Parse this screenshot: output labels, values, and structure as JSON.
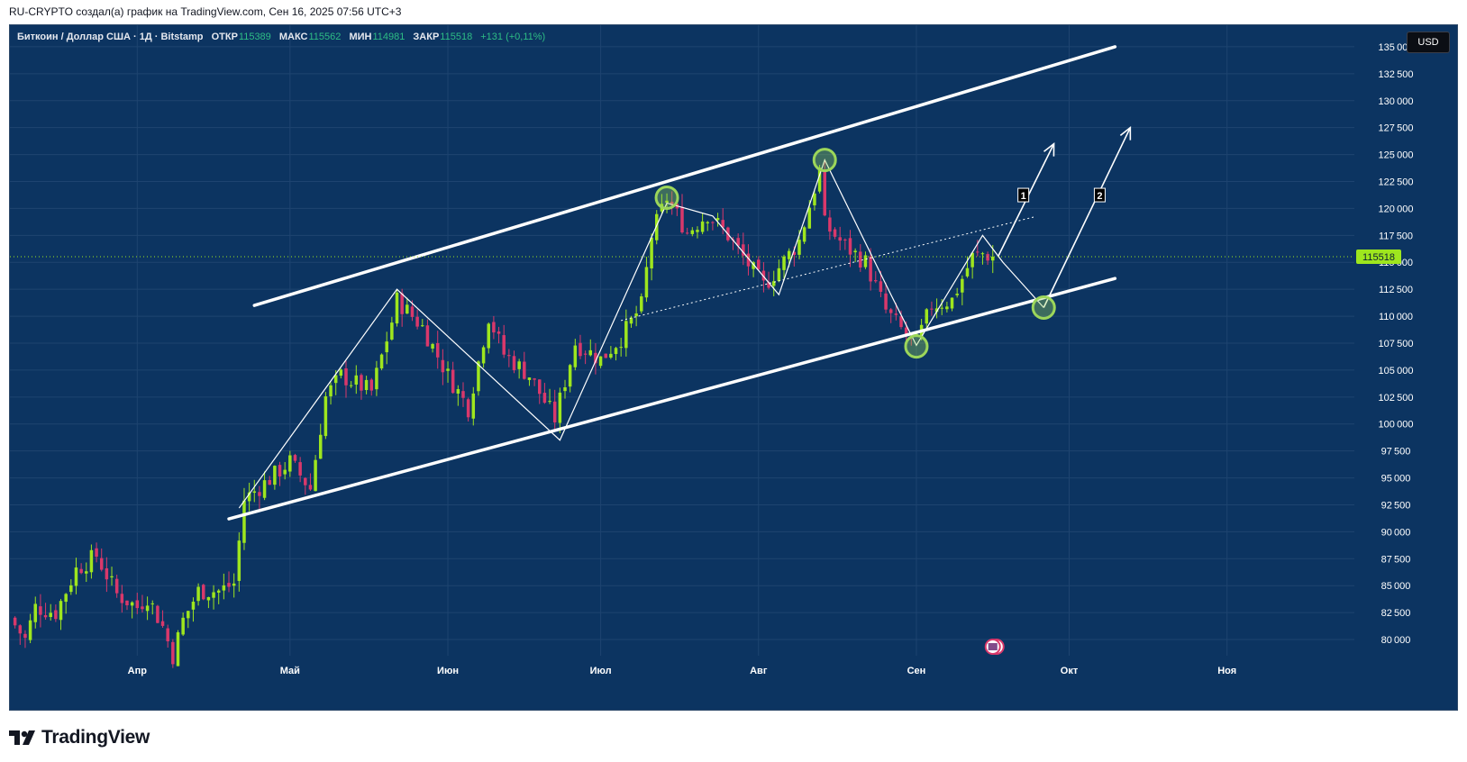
{
  "header": {
    "caption": "RU-CRYPTO создал(а) график на TradingView.com, Сен 16, 2025 07:56 UTC+3"
  },
  "legend": {
    "symbol": "Биткоин / Доллар США · 1Д · Bitstamp",
    "open_label": "ОТКР",
    "open": "115389",
    "high_label": "МАКС",
    "high": "115562",
    "low_label": "МИН",
    "low": "114981",
    "close_label": "ЗАКР",
    "close": "115518",
    "change": "+131 (+0,11%)"
  },
  "currency_button": "USD",
  "logo": {
    "text": "TradingView",
    "icon": "tradingview-logo-icon"
  },
  "colors": {
    "background": "#0c3461",
    "grid": "#1e4470",
    "up": "#9ee61e",
    "down": "#d9386b",
    "drawing": "#ffffff",
    "highlight": "#9cd65a",
    "axis_text": "#ffffff",
    "last_price": "#9ee61e"
  },
  "chart_data": {
    "type": "candlestick",
    "instrument": "BTC/USD",
    "timeframe": "1D",
    "exchange": "Bitstamp",
    "x_ticks": [
      "Апр",
      "Май",
      "Июн",
      "Июл",
      "Авг",
      "Сен",
      "Окт",
      "Ноя"
    ],
    "y_ticks": [
      "80000",
      "82500",
      "85000",
      "87500",
      "90000",
      "92500",
      "95000",
      "97500",
      "100000",
      "102500",
      "105000",
      "107500",
      "110000",
      "112500",
      "115000",
      "117500",
      "120000",
      "122500",
      "125000",
      "127500",
      "130000",
      "132500",
      "135000"
    ],
    "ylim": [
      78500,
      137000
    ],
    "xlim": [
      "2025-03-07",
      "2025-11-26"
    ],
    "last_price": 115518,
    "last_price_label": "115518",
    "grid": true,
    "price_path": [
      [
        "2025-03-07",
        82000
      ],
      [
        "2025-03-10",
        80000
      ],
      [
        "2025-03-12",
        83000
      ],
      [
        "2025-03-16",
        82500
      ],
      [
        "2025-03-20",
        86500
      ],
      [
        "2025-03-24",
        87800
      ],
      [
        "2025-03-28",
        84200
      ],
      [
        "2025-04-01",
        83000
      ],
      [
        "2025-04-03",
        84000
      ],
      [
        "2025-04-06",
        81200
      ],
      [
        "2025-04-08",
        78500
      ],
      [
        "2025-04-10",
        81800
      ],
      [
        "2025-04-13",
        84500
      ],
      [
        "2025-04-17",
        84500
      ],
      [
        "2025-04-20",
        85200
      ],
      [
        "2025-04-22",
        93000
      ],
      [
        "2025-04-26",
        94500
      ],
      [
        "2025-05-01",
        96500
      ],
      [
        "2025-05-05",
        94000
      ],
      [
        "2025-05-08",
        102500
      ],
      [
        "2025-05-11",
        104500
      ],
      [
        "2025-05-17",
        103000
      ],
      [
        "2025-05-21",
        109500
      ],
      [
        "2025-05-22",
        111500
      ],
      [
        "2025-05-27",
        109000
      ],
      [
        "2025-06-01",
        104500
      ],
      [
        "2025-06-05",
        101500
      ],
      [
        "2025-06-09",
        110000
      ],
      [
        "2025-06-12",
        106500
      ],
      [
        "2025-06-17",
        104500
      ],
      [
        "2025-06-22",
        100500
      ],
      [
        "2025-06-26",
        107500
      ],
      [
        "2025-07-01",
        106000
      ],
      [
        "2025-07-05",
        108000
      ],
      [
        "2025-07-09",
        111000
      ],
      [
        "2025-07-11",
        117500
      ],
      [
        "2025-07-14",
        121000
      ],
      [
        "2025-07-18",
        117800
      ],
      [
        "2025-07-22",
        119500
      ],
      [
        "2025-07-26",
        117500
      ],
      [
        "2025-08-02",
        112800
      ],
      [
        "2025-08-05",
        114500
      ],
      [
        "2025-08-09",
        117000
      ],
      [
        "2025-08-13",
        123500
      ],
      [
        "2025-08-14",
        118500
      ],
      [
        "2025-08-18",
        116500
      ],
      [
        "2025-08-22",
        115000
      ],
      [
        "2025-08-26",
        110500
      ],
      [
        "2025-08-30",
        108200
      ],
      [
        "2025-09-01",
        107500
      ],
      [
        "2025-09-04",
        111000
      ],
      [
        "2025-09-08",
        111500
      ],
      [
        "2025-09-12",
        115500
      ],
      [
        "2025-09-14",
        115800
      ],
      [
        "2025-09-16",
        115518
      ]
    ],
    "drawings": {
      "channel_upper": [
        [
          "2025-04-24",
          111000
        ],
        [
          "2025-10-10",
          135000
        ]
      ],
      "channel_lower": [
        [
          "2025-04-19",
          91200
        ],
        [
          "2025-10-10",
          113500
        ]
      ],
      "mid_dotted_line": [
        [
          "2025-07-05",
          109600
        ],
        [
          "2025-09-24",
          119200
        ]
      ],
      "wave_path": [
        [
          "2025-04-21",
          92200
        ],
        [
          "2025-05-22",
          112500
        ],
        [
          "2025-06-23",
          98500
        ],
        [
          "2025-07-14",
          120500
        ],
        [
          "2025-07-23",
          119300
        ],
        [
          "2025-08-05",
          112000
        ],
        [
          "2025-08-14",
          124500
        ],
        [
          "2025-08-27",
          112000
        ],
        [
          "2025-09-01",
          107300
        ],
        [
          "2025-09-14",
          117500
        ],
        [
          "2025-09-18",
          115000
        ],
        [
          "2025-09-26",
          110800
        ]
      ],
      "scenario_1_arrow": [
        [
          "2025-09-17",
          115500
        ],
        [
          "2025-09-28",
          126000
        ]
      ],
      "scenario_2_arrow": [
        [
          "2025-09-26",
          110800
        ],
        [
          "2025-10-13",
          127500
        ]
      ],
      "highlight_circles": [
        [
          "2025-07-14",
          121000
        ],
        [
          "2025-08-14",
          124500
        ],
        [
          "2025-09-01",
          107200
        ],
        [
          "2025-09-26",
          110800
        ]
      ],
      "scenario_labels": [
        {
          "text": "1",
          "date": "2025-09-22",
          "price": 121200
        },
        {
          "text": "2",
          "date": "2025-10-07",
          "price": 121200
        }
      ]
    }
  }
}
